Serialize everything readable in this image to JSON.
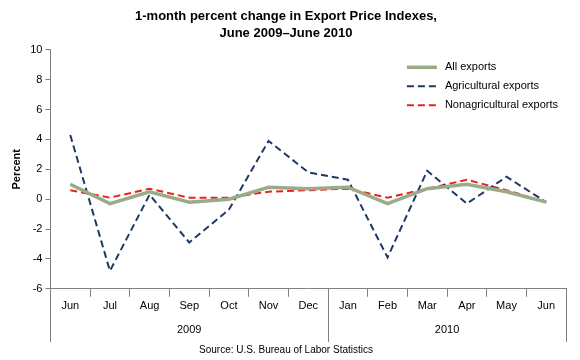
{
  "chart_data": {
    "type": "line",
    "title": "1-month percent change in Export Price Indexes,\nJune 2009–June 2010",
    "y_label": "Percent",
    "source": "Source: U.S. Bureau of Labor Statistics",
    "categories": [
      "Jun",
      "Jul",
      "Aug",
      "Sep",
      "Oct",
      "Nov",
      "Dec",
      "Jan",
      "Feb",
      "Mar",
      "Apr",
      "May",
      "Jun"
    ],
    "x_groups": [
      {
        "label": "2009",
        "span": 7
      },
      {
        "label": "2010",
        "span": 6
      }
    ],
    "series": [
      {
        "name": "All exports",
        "color": "#9aab8a",
        "line_style": "solid",
        "marker": "none",
        "values": [
          1.0,
          -0.3,
          0.5,
          -0.2,
          0.0,
          0.8,
          0.7,
          0.8,
          -0.3,
          0.7,
          1.0,
          0.5,
          -0.2
        ]
      },
      {
        "name": "Agricultural exports",
        "color": "#1f3864",
        "line_style": "dashed",
        "marker": "none",
        "values": [
          4.3,
          -4.8,
          0.3,
          -2.9,
          -0.7,
          3.9,
          1.8,
          1.3,
          -3.9,
          1.9,
          -0.3,
          1.5,
          -0.2
        ]
      },
      {
        "name": "Nonagricultural exports",
        "color": "#e8231e",
        "line_style": "dashed",
        "marker": "none",
        "values": [
          0.6,
          0.1,
          0.7,
          0.1,
          0.1,
          0.5,
          0.6,
          0.7,
          0.1,
          0.7,
          1.3,
          0.6,
          -0.2
        ]
      }
    ],
    "ylim": [
      -6,
      10
    ],
    "yticks": [
      -6,
      -4,
      -2,
      0,
      2,
      4,
      6,
      8,
      10
    ],
    "grid": false,
    "legend": "top-right"
  }
}
